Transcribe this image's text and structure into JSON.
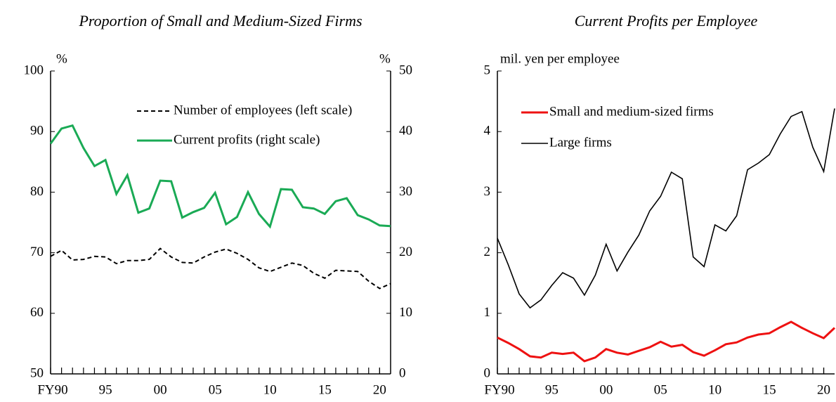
{
  "chart_data": [
    {
      "type": "line",
      "title": "Proportion of Small and Medium-Sized Firms",
      "ylabel": "%",
      "y2label": "%",
      "x": [
        1990,
        1991,
        1992,
        1993,
        1994,
        1995,
        1996,
        1997,
        1998,
        1999,
        2000,
        2001,
        2002,
        2003,
        2004,
        2005,
        2006,
        2007,
        2008,
        2009,
        2010,
        2011,
        2012,
        2013,
        2014,
        2015,
        2016,
        2017,
        2018,
        2019,
        2020,
        2021
      ],
      "xlim": [
        1990,
        2021
      ],
      "xticks": [
        {
          "value": 1990,
          "label": "FY90"
        },
        {
          "value": 1995,
          "label": "95"
        },
        {
          "value": 2000,
          "label": "00"
        },
        {
          "value": 2005,
          "label": "05"
        },
        {
          "value": 2010,
          "label": "10"
        },
        {
          "value": 2015,
          "label": "15"
        },
        {
          "value": 2020,
          "label": "20"
        }
      ],
      "ylim": [
        50,
        100
      ],
      "yticks": [
        50,
        60,
        70,
        80,
        90,
        100
      ],
      "y2lim": [
        0,
        50
      ],
      "y2ticks": [
        0,
        10,
        20,
        30,
        40,
        50
      ],
      "series": [
        {
          "name": "Number of employees (left scale)",
          "color": "#000000",
          "style": "dashed",
          "values": [
            69.4,
            70.4,
            68.8,
            68.9,
            69.4,
            69.3,
            68.2,
            68.7,
            68.7,
            68.9,
            70.7,
            69.3,
            68.4,
            68.3,
            69.3,
            70.1,
            70.6,
            69.9,
            68.9,
            67.5,
            66.9,
            67.6,
            68.3,
            67.9,
            66.6,
            65.8,
            67.1,
            67.0,
            66.9,
            65.3,
            64.1,
            64.9
          ]
        },
        {
          "name": "Current profits (right scale)",
          "color": "#1aaa55",
          "style": "solid",
          "axis": "y2",
          "values": [
            38.0,
            40.5,
            41.0,
            37.3,
            34.3,
            35.3,
            29.7,
            32.8,
            26.6,
            27.3,
            31.9,
            31.8,
            25.8,
            26.7,
            27.4,
            29.9,
            24.7,
            25.9,
            30.0,
            26.4,
            24.3,
            30.5,
            30.4,
            27.5,
            27.3,
            26.4,
            28.5,
            29.0,
            26.2,
            25.5,
            24.5,
            24.4
          ]
        }
      ]
    },
    {
      "type": "line",
      "title": "Current Profits per Employee",
      "ylabel": "mil. yen per employee",
      "x": [
        1990,
        1991,
        1992,
        1993,
        1994,
        1995,
        1996,
        1997,
        1998,
        1999,
        2000,
        2001,
        2002,
        2003,
        2004,
        2005,
        2006,
        2007,
        2008,
        2009,
        2010,
        2011,
        2012,
        2013,
        2014,
        2015,
        2016,
        2017,
        2018,
        2019,
        2020,
        2021
      ],
      "xlim": [
        1990,
        2021
      ],
      "xticks": [
        {
          "value": 1990,
          "label": "FY90"
        },
        {
          "value": 1995,
          "label": "95"
        },
        {
          "value": 2000,
          "label": "00"
        },
        {
          "value": 2005,
          "label": "05"
        },
        {
          "value": 2010,
          "label": "10"
        },
        {
          "value": 2015,
          "label": "15"
        },
        {
          "value": 2020,
          "label": "20"
        }
      ],
      "ylim": [
        0,
        5
      ],
      "yticks": [
        0,
        1,
        2,
        3,
        4,
        5
      ],
      "series": [
        {
          "name": "Small and medium-sized firms",
          "color": "#ee1111",
          "style": "solid",
          "values": [
            0.6,
            0.51,
            0.41,
            0.29,
            0.27,
            0.35,
            0.33,
            0.35,
            0.21,
            0.27,
            0.41,
            0.35,
            0.32,
            0.38,
            0.44,
            0.53,
            0.45,
            0.48,
            0.36,
            0.3,
            0.39,
            0.49,
            0.52,
            0.6,
            0.65,
            0.67,
            0.77,
            0.86,
            0.76,
            0.67,
            0.59,
            0.76
          ]
        },
        {
          "name": "Large firms",
          "color": "#000000",
          "style": "solid",
          "values": [
            2.24,
            1.8,
            1.32,
            1.09,
            1.22,
            1.46,
            1.67,
            1.58,
            1.3,
            1.63,
            2.14,
            1.7,
            2.01,
            2.29,
            2.69,
            2.93,
            3.33,
            3.22,
            1.93,
            1.77,
            2.46,
            2.36,
            2.61,
            3.37,
            3.48,
            3.62,
            3.96,
            4.25,
            4.33,
            3.74,
            3.34,
            4.38
          ]
        }
      ]
    }
  ]
}
